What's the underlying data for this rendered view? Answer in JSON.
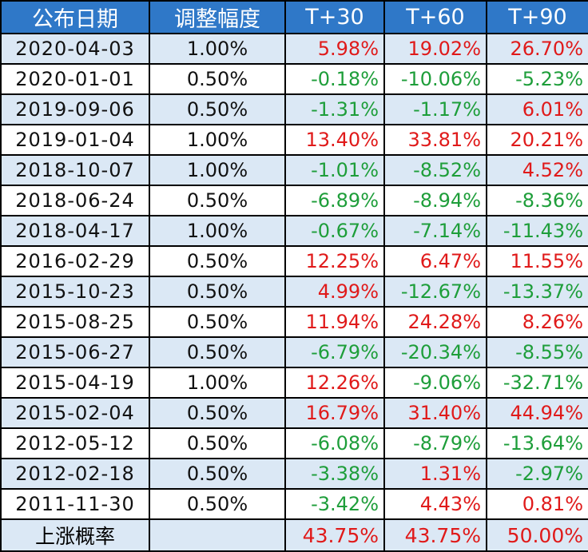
{
  "headers": [
    "公布日期",
    "调整幅度",
    "T+30",
    "T+60",
    "T+90"
  ],
  "rows": [
    {
      "date": "2020-04-03",
      "adjust": "1.00%",
      "t30": "5.98%",
      "t60": "19.02%",
      "t90": "26.70%"
    },
    {
      "date": "2020-01-01",
      "adjust": "0.50%",
      "t30": "-0.18%",
      "t60": "-10.06%",
      "t90": "-5.23%"
    },
    {
      "date": "2019-09-06",
      "adjust": "0.50%",
      "t30": "-1.31%",
      "t60": "-1.17%",
      "t90": "6.01%"
    },
    {
      "date": "2019-01-04",
      "adjust": "1.00%",
      "t30": "13.40%",
      "t60": "33.81%",
      "t90": "20.21%"
    },
    {
      "date": "2018-10-07",
      "adjust": "1.00%",
      "t30": "-1.01%",
      "t60": "-8.52%",
      "t90": "4.52%"
    },
    {
      "date": "2018-06-24",
      "adjust": "0.50%",
      "t30": "-6.89%",
      "t60": "-8.94%",
      "t90": "-8.36%"
    },
    {
      "date": "2018-04-17",
      "adjust": "1.00%",
      "t30": "-0.67%",
      "t60": "-7.14%",
      "t90": "-11.43%"
    },
    {
      "date": "2016-02-29",
      "adjust": "0.50%",
      "t30": "12.25%",
      "t60": "6.47%",
      "t90": "11.55%"
    },
    {
      "date": "2015-10-23",
      "adjust": "0.50%",
      "t30": "4.99%",
      "t60": "-12.67%",
      "t90": "-13.37%"
    },
    {
      "date": "2015-08-25",
      "adjust": "0.50%",
      "t30": "11.94%",
      "t60": "24.28%",
      "t90": "8.26%"
    },
    {
      "date": "2015-06-27",
      "adjust": "0.50%",
      "t30": "-6.79%",
      "t60": "-20.34%",
      "t90": "-8.55%"
    },
    {
      "date": "2015-04-19",
      "adjust": "1.00%",
      "t30": "12.26%",
      "t60": "-9.06%",
      "t90": "-32.71%"
    },
    {
      "date": "2015-02-04",
      "adjust": "0.50%",
      "t30": "16.79%",
      "t60": "31.40%",
      "t90": "44.94%"
    },
    {
      "date": "2012-05-12",
      "adjust": "0.50%",
      "t30": "-6.08%",
      "t60": "-8.79%",
      "t90": "-13.64%"
    },
    {
      "date": "2012-02-18",
      "adjust": "0.50%",
      "t30": "-3.38%",
      "t60": "1.31%",
      "t90": "-2.97%"
    },
    {
      "date": "2011-11-30",
      "adjust": "0.50%",
      "t30": "-3.42%",
      "t60": "4.43%",
      "t90": "0.81%"
    }
  ],
  "footer": {
    "label": "上涨概率",
    "adjust": "",
    "t30": "43.75%",
    "t60": "43.75%",
    "t90": "50.00%"
  },
  "colors": {
    "header_bg": "#2f78c8",
    "header_text": "#ffffff",
    "band": "#dbe8f5",
    "positive": "#e01a1a",
    "negative": "#1e9e3a",
    "border": "#000000"
  }
}
